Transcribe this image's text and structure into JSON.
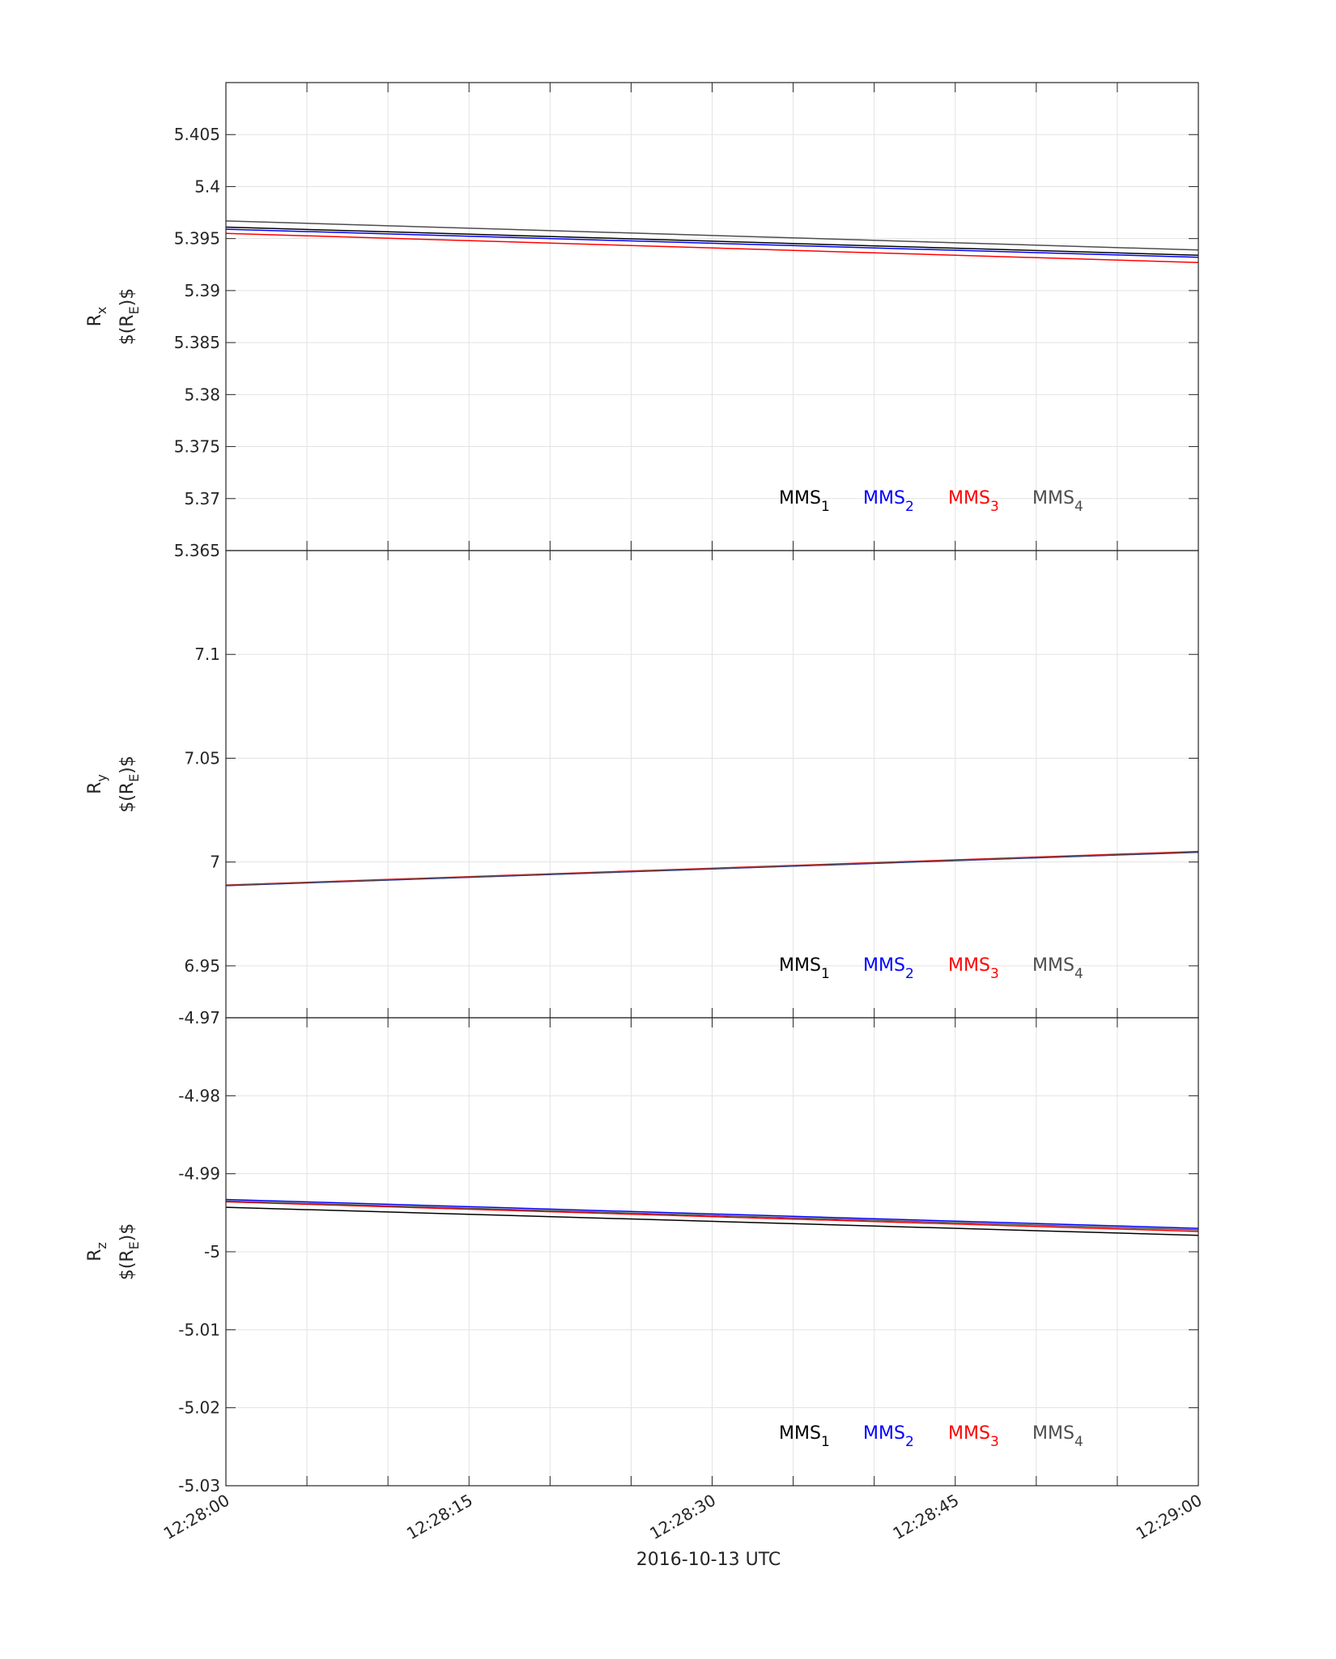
{
  "figure": {
    "xlabel": "2016-10-13 UTC",
    "x_tick_labels": [
      "12:28:00",
      "12:28:15",
      "12:28:30",
      "12:28:45",
      "12:29:00"
    ],
    "legend_entries": [
      {
        "base": "MMS",
        "sub": "1",
        "color": "#000000"
      },
      {
        "base": "MMS",
        "sub": "2",
        "color": "#0000ff"
      },
      {
        "base": "MMS",
        "sub": "3",
        "color": "#ff0000"
      },
      {
        "base": "MMS",
        "sub": "4",
        "color": "#4d4d4d"
      }
    ]
  },
  "chart_data": [
    {
      "type": "line",
      "ylabel": {
        "main": "R",
        "main_sub": "x",
        "unit_pre": "$(R",
        "unit_sub": "E",
        "unit_post": ")$"
      },
      "xlim": [
        "12:28:00",
        "12:29:00"
      ],
      "ylim": [
        5.365,
        5.41
      ],
      "y_tick_labels": [
        "5.405",
        "5.4",
        "5.395",
        "5.39",
        "5.385",
        "5.38",
        "5.375",
        "5.37",
        "5.365"
      ],
      "grid": true,
      "legend_placement": "bottom-right",
      "x": [
        "12:28:00",
        "12:29:00"
      ],
      "series": [
        {
          "name": "MMS1",
          "color": "#000000",
          "values": [
            5.3961,
            5.3934
          ]
        },
        {
          "name": "MMS2",
          "color": "#0000ff",
          "values": [
            5.3959,
            5.3932
          ]
        },
        {
          "name": "MMS3",
          "color": "#ff0000",
          "values": [
            5.3955,
            5.3927
          ]
        },
        {
          "name": "MMS4",
          "color": "#4d4d4d",
          "values": [
            5.3967,
            5.3939
          ]
        }
      ]
    },
    {
      "type": "line",
      "ylabel": {
        "main": "R",
        "main_sub": "y",
        "unit_pre": "$(R",
        "unit_sub": "E",
        "unit_post": ")$"
      },
      "xlim": [
        "12:28:00",
        "12:29:00"
      ],
      "ylim": [
        6.925,
        7.15
      ],
      "y_tick_labels": [
        "7.1",
        "7.05",
        "7",
        "6.95"
      ],
      "grid": true,
      "legend_placement": "bottom-right",
      "x": [
        "12:28:00",
        "12:29:00"
      ],
      "series": [
        {
          "name": "MMS1",
          "color": "#000000",
          "values": [
            6.9888,
            7.0049
          ]
        },
        {
          "name": "MMS2",
          "color": "#0000ff",
          "values": [
            6.9886,
            7.0047
          ]
        },
        {
          "name": "MMS3",
          "color": "#ff0000",
          "values": [
            6.9889,
            7.0051
          ]
        },
        {
          "name": "MMS4",
          "color": "#4d4d4d",
          "values": [
            6.9887,
            7.0048
          ]
        }
      ]
    },
    {
      "type": "line",
      "ylabel": {
        "main": "R",
        "main_sub": "z",
        "unit_pre": "$(R",
        "unit_sub": "E",
        "unit_post": ")$"
      },
      "xlim": [
        "12:28:00",
        "12:29:00"
      ],
      "ylim": [
        -5.03,
        -4.97
      ],
      "y_tick_labels": [
        "-4.97",
        "-4.98",
        "-4.99",
        "-5",
        "-5.01",
        "-5.02",
        "-5.03"
      ],
      "grid": true,
      "legend_placement": "bottom-right",
      "x": [
        "12:28:00",
        "12:29:00"
      ],
      "series": [
        {
          "name": "MMS1",
          "color": "#000000",
          "values": [
            -4.9943,
            -4.9979
          ]
        },
        {
          "name": "MMS2",
          "color": "#0000ff",
          "values": [
            -4.9933,
            -4.997
          ]
        },
        {
          "name": "MMS3",
          "color": "#ff0000",
          "values": [
            -4.9936,
            -4.9974
          ]
        },
        {
          "name": "MMS4",
          "color": "#4d4d4d",
          "values": [
            -4.9935,
            -4.9972
          ]
        }
      ]
    }
  ]
}
